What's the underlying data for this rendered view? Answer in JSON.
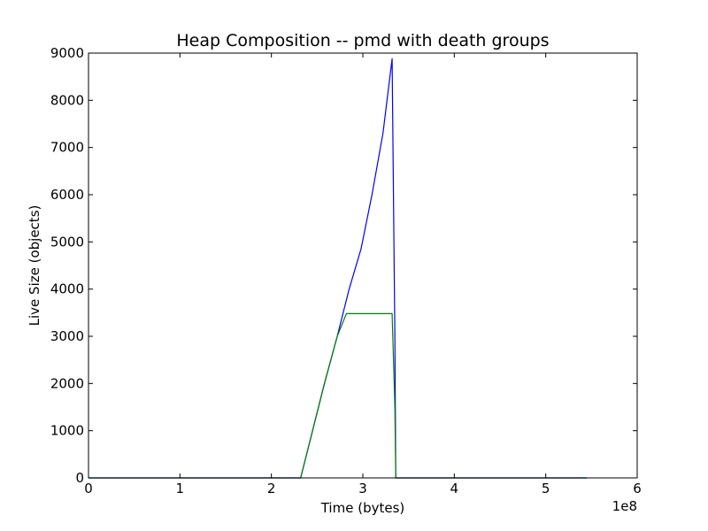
{
  "chart_data": {
    "type": "line",
    "title": "Heap Composition -- pmd with death groups",
    "xlabel": "Time (bytes)",
    "ylabel": "Live Size (objects)",
    "x_offset_label": "1e8",
    "xlim": [
      0,
      6
    ],
    "ylim": [
      0,
      9000
    ],
    "x_ticks": [
      0,
      1,
      2,
      3,
      4,
      5,
      6
    ],
    "x_tick_labels": [
      "0",
      "1",
      "2",
      "3",
      "4",
      "5",
      "6"
    ],
    "y_ticks": [
      0,
      1000,
      2000,
      3000,
      4000,
      5000,
      6000,
      7000,
      8000,
      9000
    ],
    "y_tick_labels": [
      "0",
      "1000",
      "2000",
      "3000",
      "4000",
      "5000",
      "6000",
      "7000",
      "8000",
      "9000"
    ],
    "grid": false,
    "legend": "none",
    "series": [
      {
        "color": "#0000ff",
        "x": [
          0,
          2.32,
          2.45,
          2.58,
          2.72,
          2.85,
          2.98,
          3.1,
          3.22,
          3.32,
          3.35,
          3.36,
          5.45
        ],
        "y": [
          0,
          0,
          1000,
          2000,
          3000,
          4000,
          4850,
          6000,
          7300,
          8880,
          3000,
          0,
          0
        ]
      },
      {
        "color": "#008000",
        "x": [
          0,
          2.32,
          2.45,
          2.58,
          2.72,
          2.82,
          3.32,
          3.35,
          3.36,
          5.45
        ],
        "y": [
          0,
          0,
          1000,
          2000,
          3000,
          3480,
          3480,
          1500,
          0,
          0
        ]
      }
    ]
  }
}
